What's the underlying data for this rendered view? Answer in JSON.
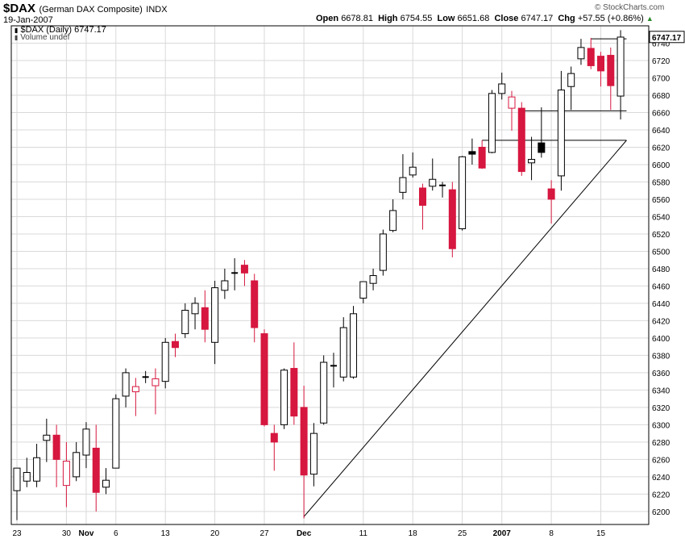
{
  "header": {
    "symbol": "$DAX",
    "name": "(German DAX Composite)",
    "exchange": "INDX",
    "date": "19-Jan-2007",
    "legend_line1": "$DAX (Daily) 6747.17",
    "legend_line2": "Volume undef",
    "open_label": "Open",
    "open": "6678.81",
    "high_label": "High",
    "high": "6754.55",
    "low_label": "Low",
    "low": "6651.68",
    "close_label": "Close",
    "close": "6747.17",
    "chg_label": "Chg",
    "chg": "+57.55 (+0.86%)",
    "credit": "© StockCharts.com"
  },
  "colors": {
    "up_body": "#ffffff",
    "down_body": "#d6173f",
    "black_body": "#000000",
    "grid": "#d9d9d9",
    "last_price_bg": "#ffffff"
  },
  "chart_data": {
    "type": "candlestick",
    "title": "$DAX (German DAX Composite) INDX",
    "ylim": [
      6185,
      6760
    ],
    "yticks": [
      6200,
      6220,
      6240,
      6260,
      6280,
      6300,
      6320,
      6340,
      6360,
      6380,
      6400,
      6420,
      6440,
      6460,
      6480,
      6500,
      6520,
      6540,
      6560,
      6580,
      6600,
      6620,
      6640,
      6660,
      6680,
      6700,
      6720,
      6740
    ],
    "xticks": [
      {
        "label": "23",
        "i": 0
      },
      {
        "label": "30",
        "i": 5
      },
      {
        "label": "Nov",
        "i": 7,
        "bold": true
      },
      {
        "label": "6",
        "i": 10
      },
      {
        "label": "13",
        "i": 15
      },
      {
        "label": "20",
        "i": 20
      },
      {
        "label": "27",
        "i": 25
      },
      {
        "label": "Dec",
        "i": 29,
        "bold": true
      },
      {
        "label": "11",
        "i": 35
      },
      {
        "label": "18",
        "i": 40
      },
      {
        "label": "25",
        "i": 45
      },
      {
        "label": "2007",
        "i": 49,
        "bold": true
      },
      {
        "label": "8",
        "i": 54
      },
      {
        "label": "15",
        "i": 59
      }
    ],
    "last_price": "6747.17",
    "candles": [
      {
        "o": 6224,
        "h": 6245,
        "l": 6190,
        "c": 6250,
        "k": "up"
      },
      {
        "o": 6235,
        "h": 6262,
        "l": 6228,
        "c": 6245,
        "k": "up"
      },
      {
        "o": 6235,
        "h": 6278,
        "l": 6228,
        "c": 6262,
        "k": "up"
      },
      {
        "o": 6282,
        "h": 6307,
        "l": 6257,
        "c": 6288,
        "k": "up"
      },
      {
        "o": 6288,
        "h": 6300,
        "l": 6228,
        "c": 6260,
        "k": "down"
      },
      {
        "o": 6258,
        "h": 6280,
        "l": 6205,
        "c": 6230,
        "k": "hollowdown"
      },
      {
        "o": 6240,
        "h": 6280,
        "l": 6235,
        "c": 6268,
        "k": "up"
      },
      {
        "o": 6265,
        "h": 6303,
        "l": 6250,
        "c": 6295,
        "k": "up"
      },
      {
        "o": 6273,
        "h": 6300,
        "l": 6200,
        "c": 6222,
        "k": "down"
      },
      {
        "o": 6228,
        "h": 6250,
        "l": 6220,
        "c": 6236,
        "k": "up"
      },
      {
        "o": 6250,
        "h": 6335,
        "l": 6250,
        "c": 6330,
        "k": "up"
      },
      {
        "o": 6333,
        "h": 6365,
        "l": 6320,
        "c": 6360,
        "k": "up"
      },
      {
        "o": 6344,
        "h": 6354,
        "l": 6310,
        "c": 6338,
        "k": "hollowdown"
      },
      {
        "o": 6355,
        "h": 6362,
        "l": 6348,
        "c": 6355,
        "k": "doji"
      },
      {
        "o": 6345,
        "h": 6365,
        "l": 6312,
        "c": 6353,
        "k": "hollowdown"
      },
      {
        "o": 6350,
        "h": 6400,
        "l": 6342,
        "c": 6395,
        "k": "up"
      },
      {
        "o": 6396,
        "h": 6405,
        "l": 6378,
        "c": 6389,
        "k": "down"
      },
      {
        "o": 6405,
        "h": 6440,
        "l": 6400,
        "c": 6432,
        "k": "up"
      },
      {
        "o": 6428,
        "h": 6447,
        "l": 6410,
        "c": 6440,
        "k": "up"
      },
      {
        "o": 6435,
        "h": 6455,
        "l": 6395,
        "c": 6410,
        "k": "down"
      },
      {
        "o": 6395,
        "h": 6466,
        "l": 6370,
        "c": 6458,
        "k": "up"
      },
      {
        "o": 6455,
        "h": 6480,
        "l": 6445,
        "c": 6466,
        "k": "up"
      },
      {
        "o": 6475,
        "h": 6492,
        "l": 6455,
        "c": 6475,
        "k": "doji"
      },
      {
        "o": 6484,
        "h": 6490,
        "l": 6460,
        "c": 6475,
        "k": "down"
      },
      {
        "o": 6466,
        "h": 6474,
        "l": 6395,
        "c": 6412,
        "k": "down"
      },
      {
        "o": 6405,
        "h": 6410,
        "l": 6298,
        "c": 6300,
        "k": "down"
      },
      {
        "o": 6290,
        "h": 6300,
        "l": 6247,
        "c": 6280,
        "k": "down"
      },
      {
        "o": 6300,
        "h": 6365,
        "l": 6295,
        "c": 6363,
        "k": "up"
      },
      {
        "o": 6365,
        "h": 6395,
        "l": 6300,
        "c": 6310,
        "k": "down"
      },
      {
        "o": 6320,
        "h": 6345,
        "l": 6192,
        "c": 6242,
        "k": "down"
      },
      {
        "o": 6243,
        "h": 6302,
        "l": 6229,
        "c": 6290,
        "k": "up"
      },
      {
        "o": 6302,
        "h": 6380,
        "l": 6300,
        "c": 6372,
        "k": "up"
      },
      {
        "o": 6368,
        "h": 6383,
        "l": 6343,
        "c": 6368,
        "k": "doji"
      },
      {
        "o": 6355,
        "h": 6424,
        "l": 6350,
        "c": 6412,
        "k": "up"
      },
      {
        "o": 6355,
        "h": 6437,
        "l": 6353,
        "c": 6428,
        "k": "up"
      },
      {
        "o": 6446,
        "h": 6465,
        "l": 6440,
        "c": 6465,
        "k": "up"
      },
      {
        "o": 6463,
        "h": 6480,
        "l": 6455,
        "c": 6472,
        "k": "up"
      },
      {
        "o": 6478,
        "h": 6525,
        "l": 6472,
        "c": 6520,
        "k": "up"
      },
      {
        "o": 6524,
        "h": 6560,
        "l": 6522,
        "c": 6547,
        "k": "up"
      },
      {
        "o": 6568,
        "h": 6612,
        "l": 6560,
        "c": 6585,
        "k": "up"
      },
      {
        "o": 6588,
        "h": 6614,
        "l": 6585,
        "c": 6597,
        "k": "up"
      },
      {
        "o": 6573,
        "h": 6578,
        "l": 6525,
        "c": 6553,
        "k": "down"
      },
      {
        "o": 6575,
        "h": 6607,
        "l": 6570,
        "c": 6583,
        "k": "up"
      },
      {
        "o": 6576,
        "h": 6580,
        "l": 6562,
        "c": 6576,
        "k": "doji"
      },
      {
        "o": 6571,
        "h": 6580,
        "l": 6493,
        "c": 6503,
        "k": "down"
      },
      {
        "o": 6526,
        "h": 6610,
        "l": 6524,
        "c": 6609,
        "k": "up"
      },
      {
        "o": 6615,
        "h": 6630,
        "l": 6600,
        "c": 6612,
        "k": "black"
      },
      {
        "o": 6620,
        "h": 6628,
        "l": 6595,
        "c": 6596,
        "k": "down"
      },
      {
        "o": 6614,
        "h": 6686,
        "l": 6613,
        "c": 6682,
        "k": "up"
      },
      {
        "o": 6682,
        "h": 6706,
        "l": 6675,
        "c": 6693,
        "k": "up"
      },
      {
        "o": 6665,
        "h": 6685,
        "l": 6639,
        "c": 6678,
        "k": "hollowdown"
      },
      {
        "o": 6665,
        "h": 6672,
        "l": 6587,
        "c": 6592,
        "k": "down"
      },
      {
        "o": 6602,
        "h": 6632,
        "l": 6582,
        "c": 6606,
        "k": "up"
      },
      {
        "o": 6625,
        "h": 6666,
        "l": 6608,
        "c": 6614,
        "k": "black"
      },
      {
        "o": 6572,
        "h": 6582,
        "l": 6532,
        "c": 6560,
        "k": "down"
      },
      {
        "o": 6587,
        "h": 6708,
        "l": 6570,
        "c": 6686,
        "k": "up"
      },
      {
        "o": 6690,
        "h": 6713,
        "l": 6663,
        "c": 6705,
        "k": "up"
      },
      {
        "o": 6722,
        "h": 6745,
        "l": 6715,
        "c": 6735,
        "k": "up"
      },
      {
        "o": 6734,
        "h": 6746,
        "l": 6710,
        "c": 6714,
        "k": "down"
      },
      {
        "o": 6725,
        "h": 6730,
        "l": 6690,
        "c": 6708,
        "k": "down"
      },
      {
        "o": 6726,
        "h": 6735,
        "l": 6663,
        "c": 6691,
        "k": "down"
      },
      {
        "o": 6679,
        "h": 6755,
        "l": 6652,
        "c": 6747,
        "k": "up"
      }
    ],
    "annotations": [
      {
        "type": "trendline",
        "from": {
          "i": 29,
          "v": 6194
        },
        "to": {
          "i": 61.6,
          "v": 6628
        }
      },
      {
        "type": "hline",
        "from_i": 47,
        "to_i": 61.6,
        "v": 6628
      },
      {
        "type": "hline",
        "from_i": 51,
        "to_i": 61.6,
        "v": 6662
      },
      {
        "type": "hline",
        "from_i": 58,
        "to_i": 61.6,
        "v": 6745
      }
    ]
  }
}
